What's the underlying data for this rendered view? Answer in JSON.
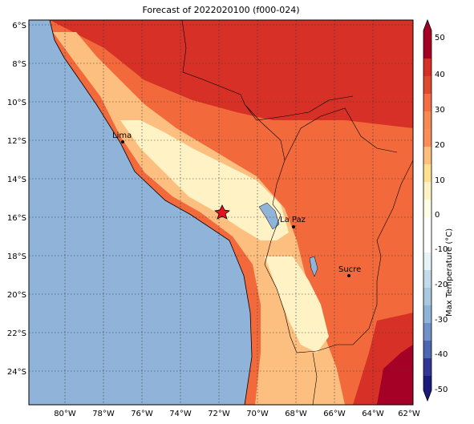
{
  "title": "Forecast of 2022020100 (f000-024)",
  "colors": {
    "ocean": "#8fb3d9",
    "land_base": "#f26a3b",
    "hot": "#d73027",
    "warm": "#fc8d59",
    "mild": "#fdbf80",
    "cool": "#fff2c4",
    "lake": "#8fb3d9",
    "border": "#000000"
  },
  "axes": {
    "x_ticks": [
      "80°W",
      "78°W",
      "76°W",
      "74°W",
      "72°W",
      "70°W",
      "68°W",
      "66°W",
      "64°W",
      "62°W"
    ],
    "y_ticks": [
      "6°S",
      "8°S",
      "10°S",
      "12°S",
      "14°S",
      "16°S",
      "18°S",
      "20°S",
      "22°S",
      "24°S"
    ]
  },
  "cities": [
    {
      "name": "Lima",
      "lon": -77.0,
      "lat": -12.05
    },
    {
      "name": "La Paz",
      "lon": -68.15,
      "lat": -16.5
    },
    {
      "name": "Sucre",
      "lon": -65.25,
      "lat": -19.05
    }
  ],
  "marker": {
    "lon": -71.8,
    "lat": -15.8,
    "icon": "star-icon"
  },
  "colorbar": {
    "label": "Max Temperature (°C)",
    "ticks": [
      "50",
      "40",
      "30",
      "20",
      "10",
      "0",
      "-10",
      "-20",
      "-30",
      "-40",
      "-50"
    ],
    "colors": [
      "#a50026",
      "#d73027",
      "#f46d43",
      "#fc8d59",
      "#fdbf80",
      "#fff2c4",
      "#e6f3f7",
      "#c2dbe8",
      "#8fb3d9",
      "#5f80c0",
      "#313695",
      "#1a1a7a"
    ]
  }
}
